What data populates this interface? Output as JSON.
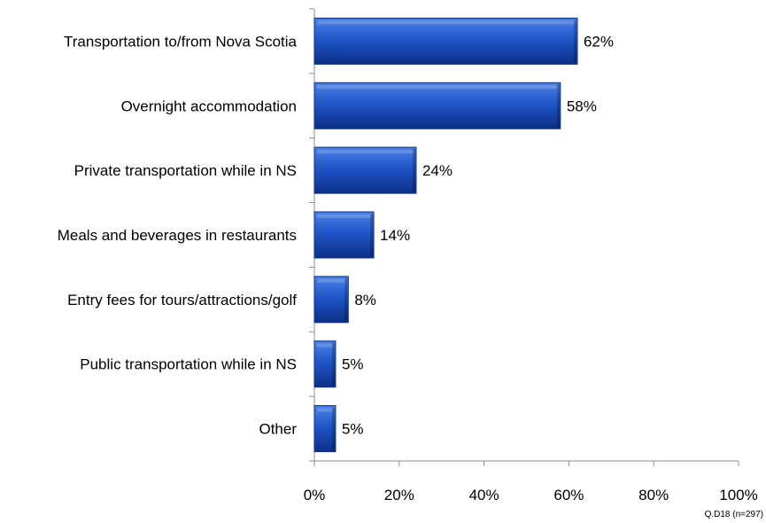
{
  "chart_data": {
    "type": "bar",
    "orientation": "horizontal",
    "categories": [
      "Transportation to/from Nova Scotia",
      "Overnight accommodation",
      "Private transportation while in NS",
      "Meals and beverages in restaurants",
      "Entry fees for tours/attractions/golf",
      "Public transportation while in NS",
      "Other"
    ],
    "values": [
      62,
      58,
      24,
      14,
      8,
      5,
      5
    ],
    "value_labels": [
      "62%",
      "58%",
      "24%",
      "14%",
      "8%",
      "5%",
      "5%"
    ],
    "xlim": [
      0,
      100
    ],
    "x_ticks": [
      0,
      20,
      40,
      60,
      80,
      100
    ],
    "x_tick_labels": [
      "0%",
      "20%",
      "40%",
      "60%",
      "80%",
      "100%"
    ],
    "grid": false,
    "legend": "none",
    "note": "Q.D18 (n=297)",
    "colors": {
      "bar": "#1f56c9",
      "bar_light": "#4d82e6",
      "bar_dark": "#0c2f86",
      "axis": "#8c8c8c",
      "text": "#000000"
    }
  }
}
